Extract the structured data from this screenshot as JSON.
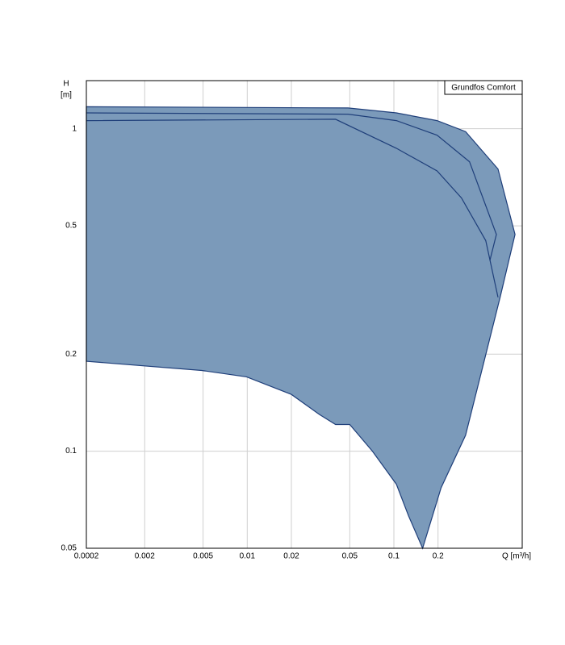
{
  "chart_data": {
    "type": "area",
    "xlabel": "Q [m³/h]",
    "ylabel": [
      "H",
      "[m]"
    ],
    "legend_label": "Grundfos Comfort",
    "x_start_label": "0.0002",
    "log_x": true,
    "log_y": true,
    "grid": true,
    "xlim": [
      0.0008,
      0.75
    ],
    "ylim": [
      0.05,
      1.41
    ],
    "xticks": [
      0.002,
      0.005,
      0.01,
      0.02,
      0.05,
      0.1,
      0.2
    ],
    "yticks": [
      0.05,
      0.1,
      0.2,
      0.5,
      1
    ],
    "fill": "#7b9aba",
    "line_color": "#1f3f7a",
    "series": [
      {
        "x": [
          0.0008,
          0.0487,
          0.104,
          0.197,
          0.308,
          0.513,
          0.67,
          0.53,
          0.308,
          0.21,
          0.157,
          0.126,
          0.104,
          0.0714,
          0.05,
          0.04,
          0.031,
          0.02,
          0.0099,
          0.0049,
          0.0008
        ],
        "y": [
          1.17,
          1.16,
          1.12,
          1.06,
          0.98,
          0.75,
          0.47,
          0.3,
          0.112,
          0.077,
          0.05,
          0.063,
          0.079,
          0.1,
          0.121,
          0.121,
          0.13,
          0.15,
          0.17,
          0.178,
          0.19
        ]
      },
      {
        "x": [
          0.0008,
          0.0487,
          0.104,
          0.197,
          0.328,
          0.5,
          0.451
        ],
        "y": [
          1.12,
          1.11,
          1.06,
          0.955,
          0.79,
          0.47,
          0.39
        ]
      },
      {
        "x": [
          0.0008,
          0.04,
          0.104,
          0.197,
          0.289,
          0.423,
          0.513
        ],
        "y": [
          1.06,
          1.07,
          0.87,
          0.74,
          0.61,
          0.45,
          0.3
        ]
      }
    ]
  }
}
